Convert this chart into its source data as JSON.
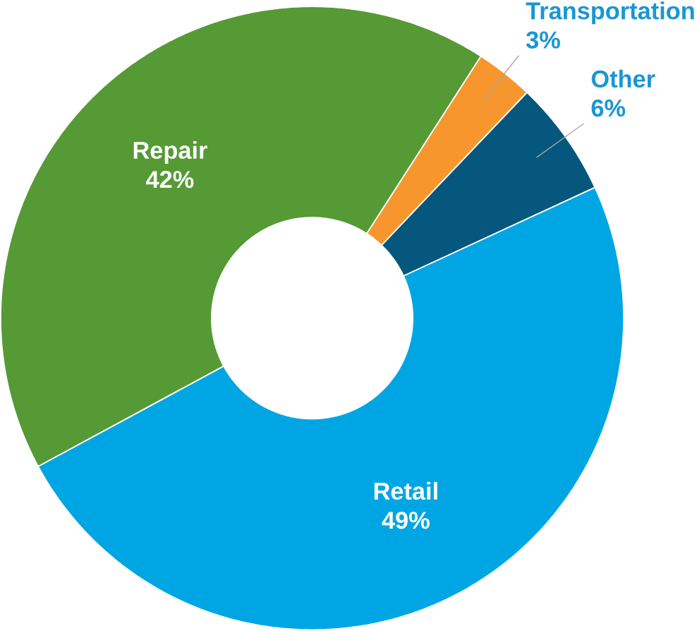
{
  "chart_data": {
    "type": "donut",
    "categories": [
      "Transportation",
      "Other",
      "Retail",
      "Repair"
    ],
    "values": [
      3,
      6,
      49,
      42
    ],
    "value_labels": [
      "3%",
      "6%",
      "49%",
      "42%"
    ],
    "colors": [
      "#f7962c",
      "#06577e",
      "#00a6e3",
      "#559a35"
    ]
  }
}
